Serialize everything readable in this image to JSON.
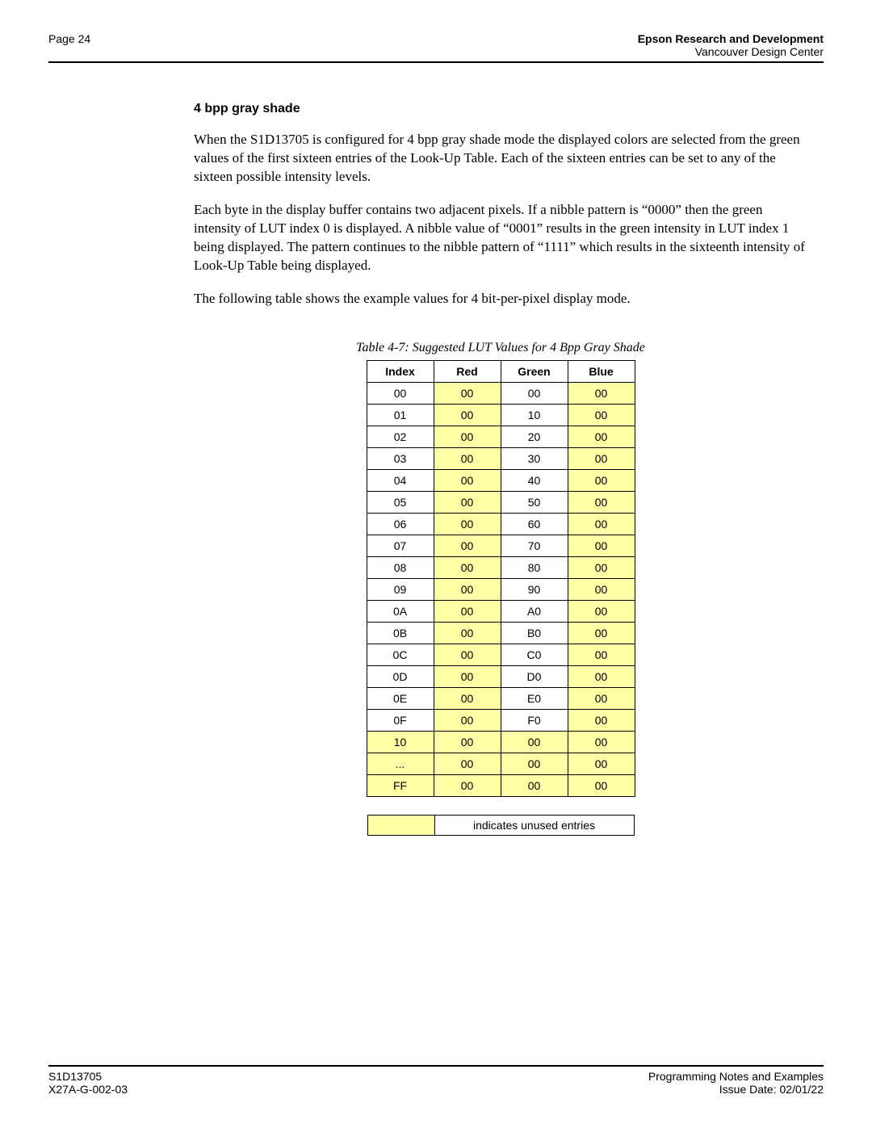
{
  "header": {
    "page_label": "Page 24",
    "org_line1": "Epson Research and Development",
    "org_line2": "Vancouver Design Center"
  },
  "section": {
    "title": "4 bpp gray shade",
    "para1": "When the S1D13705 is configured for 4 bpp gray shade mode the displayed colors are selected from the green values of the first sixteen entries of the Look-Up Table. Each of the sixteen entries can be set to any of the sixteen possible intensity levels.",
    "para2": "Each byte in the display buffer contains two adjacent pixels. If a nibble pattern is “0000” then the green intensity of LUT index 0 is displayed. A nibble value of “0001” results in the green intensity in LUT index 1 being displayed. The pattern continues to the nibble pattern of “1111” which results in the sixteenth intensity of Look-Up Table being displayed.",
    "para3": "The following table shows the example values for 4 bit-per-pixel display mode."
  },
  "table": {
    "caption": "Table 4-7: Suggested LUT Values for 4 Bpp Gray Shade",
    "headers": {
      "c0": "Index",
      "c1": "Red",
      "c2": "Green",
      "c3": "Blue"
    },
    "unused_color": "#ffffa8",
    "rows": [
      {
        "index": "00",
        "red": "00",
        "green": "00",
        "blue": "00",
        "index_unused": false,
        "green_unused": false
      },
      {
        "index": "01",
        "red": "00",
        "green": "10",
        "blue": "00",
        "index_unused": false,
        "green_unused": false
      },
      {
        "index": "02",
        "red": "00",
        "green": "20",
        "blue": "00",
        "index_unused": false,
        "green_unused": false
      },
      {
        "index": "03",
        "red": "00",
        "green": "30",
        "blue": "00",
        "index_unused": false,
        "green_unused": false
      },
      {
        "index": "04",
        "red": "00",
        "green": "40",
        "blue": "00",
        "index_unused": false,
        "green_unused": false
      },
      {
        "index": "05",
        "red": "00",
        "green": "50",
        "blue": "00",
        "index_unused": false,
        "green_unused": false
      },
      {
        "index": "06",
        "red": "00",
        "green": "60",
        "blue": "00",
        "index_unused": false,
        "green_unused": false
      },
      {
        "index": "07",
        "red": "00",
        "green": "70",
        "blue": "00",
        "index_unused": false,
        "green_unused": false
      },
      {
        "index": "08",
        "red": "00",
        "green": "80",
        "blue": "00",
        "index_unused": false,
        "green_unused": false
      },
      {
        "index": "09",
        "red": "00",
        "green": "90",
        "blue": "00",
        "index_unused": false,
        "green_unused": false
      },
      {
        "index": "0A",
        "red": "00",
        "green": "A0",
        "blue": "00",
        "index_unused": false,
        "green_unused": false
      },
      {
        "index": "0B",
        "red": "00",
        "green": "B0",
        "blue": "00",
        "index_unused": false,
        "green_unused": false
      },
      {
        "index": "0C",
        "red": "00",
        "green": "C0",
        "blue": "00",
        "index_unused": false,
        "green_unused": false
      },
      {
        "index": "0D",
        "red": "00",
        "green": "D0",
        "blue": "00",
        "index_unused": false,
        "green_unused": false
      },
      {
        "index": "0E",
        "red": "00",
        "green": "E0",
        "blue": "00",
        "index_unused": false,
        "green_unused": false
      },
      {
        "index": "0F",
        "red": "00",
        "green": "F0",
        "blue": "00",
        "index_unused": false,
        "green_unused": false
      },
      {
        "index": "10",
        "red": "00",
        "green": "00",
        "blue": "00",
        "index_unused": true,
        "green_unused": true
      },
      {
        "index": "...",
        "red": "00",
        "green": "00",
        "blue": "00",
        "index_unused": true,
        "green_unused": true
      },
      {
        "index": "FF",
        "red": "00",
        "green": "00",
        "blue": "00",
        "index_unused": true,
        "green_unused": true
      }
    ]
  },
  "legend": {
    "text": "indicates unused entries"
  },
  "footer": {
    "left1": "S1D13705",
    "left2": "X27A-G-002-03",
    "right1": "Programming Notes and Examples",
    "right2": "Issue Date: 02/01/22"
  }
}
